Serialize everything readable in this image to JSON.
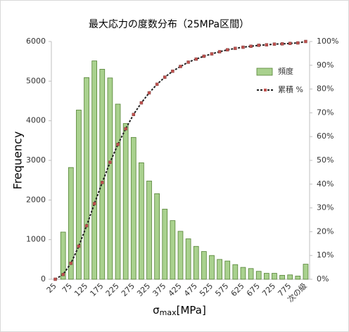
{
  "chart_data": {
    "type": "bar-line",
    "title": "最大応力の度数分布（25MPa区間）",
    "ylabel": "Frequency",
    "xlabel": {
      "symbol": "σ",
      "subscript": "max",
      "unit": "[MPa]"
    },
    "categories": [
      "25",
      null,
      "75",
      null,
      "125",
      null,
      "175",
      null,
      "225",
      null,
      "275",
      null,
      "325",
      null,
      "375",
      null,
      "425",
      null,
      "475",
      null,
      "525",
      null,
      "575",
      null,
      "625",
      null,
      "675",
      null,
      "725",
      null,
      "775",
      null,
      "次の級"
    ],
    "series": [
      {
        "name": "頻度",
        "color": "#a9d18e",
        "values": [
          0,
          1190,
          2820,
          4270,
          5090,
          5510,
          5300,
          5080,
          4420,
          3930,
          3580,
          2940,
          2480,
          2160,
          1770,
          1480,
          1210,
          1020,
          830,
          700,
          600,
          500,
          460,
          370,
          300,
          270,
          200,
          150,
          150,
          100,
          110,
          80,
          380
        ]
      },
      {
        "name": "累積 %",
        "color": "#222222",
        "axis": "y2",
        "values": [
          0,
          2.0,
          6.7,
          13.9,
          22.5,
          31.8,
          40.7,
          49.2,
          56.7,
          63.3,
          69.3,
          74.2,
          78.4,
          82.0,
          85.0,
          87.5,
          89.5,
          91.3,
          92.6,
          93.8,
          94.8,
          95.7,
          96.5,
          97.1,
          97.6,
          98.0,
          98.4,
          98.6,
          98.9,
          99.0,
          99.2,
          99.4,
          100
        ]
      }
    ],
    "ylim": [
      0,
      6000
    ],
    "yticks": [
      0,
      1000,
      2000,
      3000,
      4000,
      5000,
      6000
    ],
    "y2lim": [
      0,
      100
    ],
    "y2ticks": [
      {
        "value": 0,
        "label": "0%"
      },
      {
        "value": 10,
        "label": "10%"
      },
      {
        "value": 20,
        "label": "20%"
      },
      {
        "value": 30,
        "label": "30%"
      },
      {
        "value": 40,
        "label": "40%"
      },
      {
        "value": 50,
        "label": "50%"
      },
      {
        "value": 60,
        "label": "60%"
      },
      {
        "value": 70,
        "label": "70%"
      },
      {
        "value": 80,
        "label": "80%"
      },
      {
        "value": 90,
        "label": "90%"
      },
      {
        "value": 100,
        "label": "100%"
      }
    ],
    "grid": false,
    "legend": "top-right"
  }
}
